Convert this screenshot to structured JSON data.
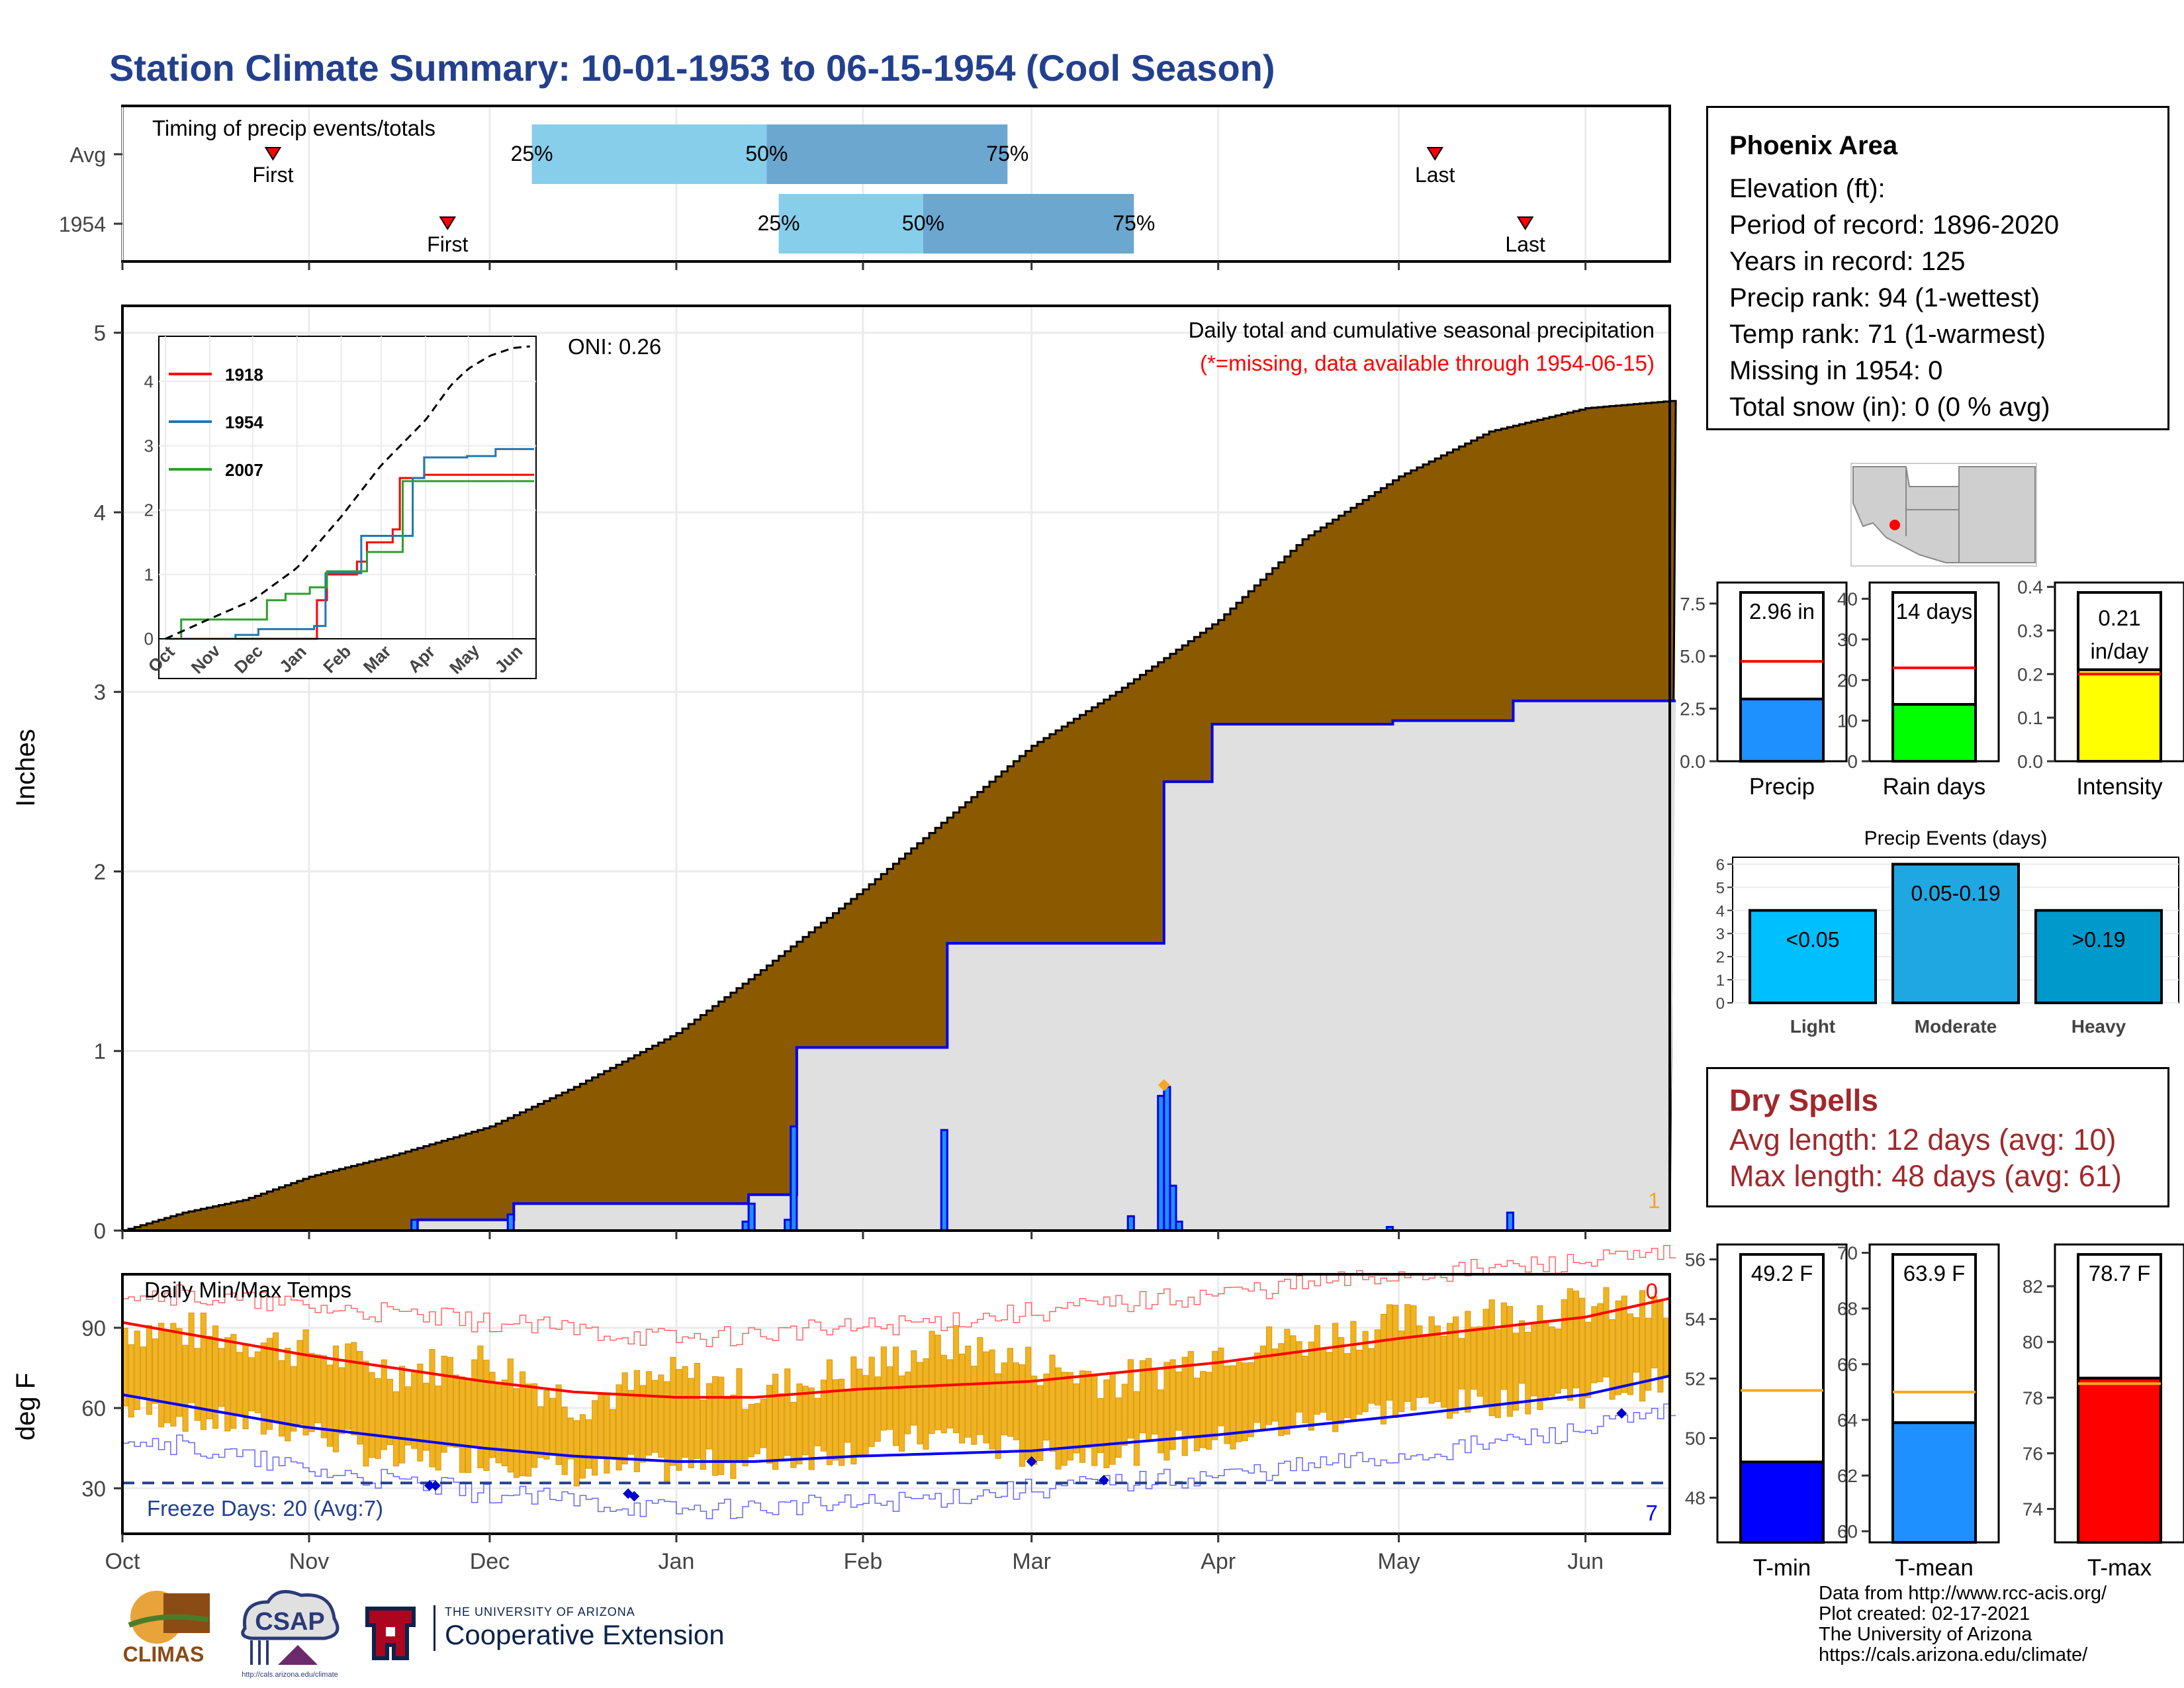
{
  "title": "Station Climate Summary: 10-01-1953 to 06-15-1954 (Cool Season)",
  "colors": {
    "title": "#23408e",
    "brown": "#8b5a00",
    "gray_fill": "#e0e0e0",
    "blue_line": "#0000ee",
    "orange": "#f5a623",
    "red": "#ff0000",
    "dry_spells": "#a0282c"
  },
  "timing": {
    "label": "Timing of precip events/totals",
    "rows": [
      {
        "name": "Avg",
        "first_doy": 25,
        "last_doy": 218,
        "p25": 68,
        "p50": 107,
        "p75": 147
      },
      {
        "name": "1954",
        "first_doy": 54,
        "last_doy": 233,
        "p25": 109,
        "p50": 133,
        "p75": 168
      }
    ],
    "labels": {
      "first": "First",
      "last": "Last",
      "p25": "25%",
      "p50": "50%",
      "p75": "75%"
    }
  },
  "info": {
    "station": "Phoenix Area",
    "lines": [
      "Elevation (ft):",
      "Period of record: 1896-2020",
      "Years in record: 125",
      "Precip rank: 94 (1-wettest)",
      "Temp rank: 71 (1-warmest)",
      "Missing in 1954: 0",
      "Total snow (in): 0 (0 % avg)"
    ]
  },
  "precip_main": {
    "ylabel": "Inches",
    "annotation": "Daily total and cumulative seasonal precipitation",
    "missing_note": "(*=missing, data available through 1954-06-15)",
    "oni": "ONI: 0.26",
    "corner_count": "1",
    "yticks": [
      "0",
      "1",
      "2",
      "3",
      "4",
      "5"
    ]
  },
  "temp_main": {
    "ylabel": "deg F",
    "label": "Daily Min/Max Temps",
    "freeze_label": "Freeze Days: 20 (Avg:7)",
    "count_top": "0",
    "count_bottom": "7",
    "yticks": [
      "30",
      "60",
      "90"
    ],
    "xticks": [
      "Oct",
      "Nov",
      "Dec",
      "Jan",
      "Feb",
      "Mar",
      "Apr",
      "May",
      "Jun"
    ]
  },
  "inset": {
    "legend": [
      "1918",
      "1954",
      "2007"
    ],
    "yticks": [
      "0",
      "1",
      "2",
      "3",
      "4"
    ],
    "xticks": [
      "Oct",
      "Nov",
      "Dec",
      "Jan",
      "Feb",
      "Mar",
      "Apr",
      "May",
      "Jun"
    ]
  },
  "small_bars": [
    {
      "name": "Precip",
      "value_label": "2.96 in",
      "value": 2.96,
      "avg": 4.75,
      "ymax": 8.5,
      "ticks": [
        "0.0",
        "2.5",
        "5.0",
        "7.5"
      ],
      "tick_vals": [
        0,
        2.5,
        5,
        7.5
      ],
      "color": "#1e90ff"
    },
    {
      "name": "Rain days",
      "value_label": "14 days",
      "value": 14,
      "avg": 23,
      "ymax": 44,
      "ticks": [
        "0",
        "10",
        "20",
        "30",
        "40"
      ],
      "tick_vals": [
        0,
        10,
        20,
        30,
        40
      ],
      "color": "#00ff00"
    },
    {
      "name": "Intensity",
      "value_label": "0.21",
      "value_label2": "in/day",
      "value": 0.21,
      "avg": 0.2,
      "ymax": 0.41,
      "ticks": [
        "0.0",
        "0.1",
        "0.2",
        "0.3",
        "0.4"
      ],
      "tick_vals": [
        0,
        0.1,
        0.2,
        0.3,
        0.4
      ],
      "color": "#ffff00"
    }
  ],
  "events": {
    "title": "Precip Events (days)",
    "bars": [
      {
        "name": "Light",
        "range": "<0.05",
        "value": 4,
        "color": "#00bfff"
      },
      {
        "name": "Moderate",
        "range": "0.05-0.19",
        "value": 6,
        "color": "#1ea7e0"
      },
      {
        "name": "Heavy",
        "range": ">0.19",
        "value": 4,
        "color": "#0099cc"
      }
    ],
    "ticks": [
      "0",
      "1",
      "2",
      "3",
      "4",
      "5",
      "6"
    ]
  },
  "dry_spells": {
    "title": "Dry Spells",
    "avg": "Avg length: 12 days (avg: 10)",
    "max": "Max length: 48 days (avg: 61)"
  },
  "temp_bars": [
    {
      "name": "T-min",
      "value_label": "49.2 F",
      "value": 49.2,
      "avg": 51.6,
      "ymin": 46.5,
      "ymax": 56.5,
      "ticks": [
        "48",
        "50",
        "52",
        "54",
        "56"
      ],
      "tick_vals": [
        48,
        50,
        52,
        54,
        56
      ],
      "color": "#0000ff"
    },
    {
      "name": "T-mean",
      "value_label": "63.9 F",
      "value": 63.9,
      "avg": 65.0,
      "ymin": 59.6,
      "ymax": 70.3,
      "ticks": [
        "60",
        "62",
        "64",
        "66",
        "68",
        "70"
      ],
      "tick_vals": [
        60,
        62,
        64,
        66,
        68,
        70
      ],
      "color": "#1e90ff"
    },
    {
      "name": "T-max",
      "value_label": "78.7 F",
      "value": 78.7,
      "avg": 78.5,
      "ymin": 72.8,
      "ymax": 83.5,
      "ticks": [
        "74",
        "76",
        "78",
        "80",
        "82"
      ],
      "tick_vals": [
        74,
        76,
        78,
        80,
        82
      ],
      "color": "#ff0000"
    }
  ],
  "credits": [
    "Data from http://www.rcc-acis.org/",
    "Plot created: 02-17-2021",
    "The University of Arizona",
    "https://cals.arizona.edu/climate/"
  ],
  "logos": {
    "climas": "CLIMAS",
    "csap": "CSAP",
    "csap_url": "http://cals.arizona.edu/climate",
    "ua_top": "THE UNIVERSITY OF ARIZONA",
    "ua_bottom": "Cooperative Extension"
  },
  "chart_data": [
    {
      "type": "area",
      "title": "Daily total and cumulative seasonal precipitation",
      "xlabel": "",
      "ylabel": "Inches",
      "ylim": [
        0,
        5.15
      ],
      "x_unit": "days since Oct 1",
      "series": [
        {
          "name": "Avg",
          "x": [
            0,
            10,
            20,
            31,
            45,
            61,
            75,
            92,
            106,
            123,
            137,
            151,
            165,
            182,
            196,
            212,
            227,
            243,
            257
          ],
          "values": [
            0,
            0.1,
            0.17,
            0.3,
            0.42,
            0.58,
            0.8,
            1.1,
            1.45,
            1.9,
            2.3,
            2.7,
            3.0,
            3.4,
            3.85,
            4.2,
            4.45,
            4.58,
            4.62
          ]
        },
        {
          "name": "1954",
          "x": [
            0,
            48,
            49,
            64,
            65,
            103,
            104,
            111,
            112,
            136,
            137,
            172,
            173,
            180,
            181,
            210,
            211,
            230,
            231,
            257
          ],
          "values": [
            0,
            0,
            0.06,
            0.06,
            0.15,
            0.15,
            0.2,
            0.2,
            1.02,
            1.02,
            1.6,
            1.6,
            2.5,
            2.5,
            2.82,
            2.82,
            2.84,
            2.84,
            2.95,
            2.95
          ]
        }
      ],
      "daily_bars": {
        "x": [
          48,
          64,
          103,
          104,
          110,
          111,
          136,
          167,
          172,
          173,
          174,
          175,
          210,
          230
        ],
        "values": [
          0.06,
          0.09,
          0.05,
          0.15,
          0.06,
          0.58,
          0.56,
          0.08,
          0.75,
          0.8,
          0.25,
          0.05,
          0.02,
          0.1
        ]
      }
    },
    {
      "type": "line",
      "title": "Daily Min/Max Temps",
      "ylabel": "deg F",
      "ylim": [
        13,
        110
      ],
      "x_unit": "days since Oct 1",
      "freeze_line": 32,
      "series": [
        {
          "name": "Avg max",
          "x": [
            0,
            30,
            60,
            75,
            92,
            105,
            122,
            151,
            182,
            212,
            243,
            257
          ],
          "values": [
            92,
            80,
            70,
            66,
            64,
            64,
            67,
            70,
            77,
            86,
            94,
            101
          ]
        },
        {
          "name": "Avg min",
          "x": [
            0,
            30,
            60,
            75,
            92,
            105,
            122,
            151,
            182,
            212,
            243,
            257
          ],
          "values": [
            65,
            53,
            45,
            42,
            40,
            40,
            42,
            44,
            50,
            57,
            65,
            72
          ]
        },
        {
          "name": "Record max",
          "x": [
            0,
            60,
            92,
            122,
            151,
            182,
            212,
            257
          ],
          "values": [
            104,
            92,
            86,
            90,
            96,
            103,
            110,
            117
          ]
        },
        {
          "name": "Record min",
          "x": [
            0,
            30,
            60,
            92,
            122,
            151,
            182,
            212,
            243,
            257
          ],
          "values": [
            50,
            37,
            28,
            22,
            24,
            30,
            35,
            42,
            52,
            58
          ]
        },
        {
          "name": "1954 max",
          "x": [
            0,
            15,
            30,
            45,
            60,
            75,
            92,
            105,
            122,
            137,
            151,
            166,
            182,
            197,
            212,
            227,
            243,
            257
          ],
          "values": [
            90,
            88,
            82,
            74,
            78,
            62,
            72,
            66,
            74,
            84,
            76,
            70,
            82,
            86,
            92,
            95,
            98,
            96
          ]
        },
        {
          "name": "1954 min",
          "x": [
            0,
            15,
            30,
            45,
            60,
            75,
            92,
            105,
            122,
            137,
            151,
            166,
            182,
            197,
            212,
            227,
            243,
            257
          ],
          "values": [
            60,
            55,
            52,
            40,
            42,
            36,
            38,
            40,
            45,
            50,
            42,
            44,
            48,
            55,
            60,
            62,
            66,
            70
          ]
        }
      ],
      "freeze_points": {
        "x": [
          51,
          52,
          84,
          85,
          151,
          163,
          249
        ],
        "values": [
          31,
          31,
          28,
          27,
          40,
          33,
          58
        ]
      }
    },
    {
      "type": "line",
      "title": "",
      "ylim": [
        0,
        4.6
      ],
      "x_unit": "days since Oct 1",
      "series": [
        {
          "name": "1918",
          "x": [
            0,
            105,
            106,
            112,
            113,
            133,
            134,
            140,
            141,
            158,
            159,
            163,
            164,
            180,
            181,
            257
          ],
          "values": [
            0,
            0,
            0.6,
            0.6,
            1.0,
            1.0,
            1.2,
            1.2,
            1.5,
            1.5,
            1.7,
            1.7,
            2.5,
            2.5,
            2.55,
            2.55
          ]
        },
        {
          "name": "1954",
          "x": [
            0,
            48,
            49,
            64,
            65,
            103,
            104,
            111,
            112,
            136,
            137,
            172,
            173,
            180,
            181,
            210,
            211,
            230,
            231,
            257
          ],
          "values": [
            0,
            0,
            0.06,
            0.06,
            0.15,
            0.15,
            0.2,
            0.2,
            1.02,
            1.02,
            1.6,
            1.6,
            2.5,
            2.5,
            2.82,
            2.82,
            2.84,
            2.84,
            2.95,
            2.95
          ]
        },
        {
          "name": "2007",
          "x": [
            0,
            10,
            11,
            70,
            71,
            83,
            84,
            100,
            101,
            112,
            113,
            140,
            141,
            165,
            166,
            257
          ],
          "values": [
            0,
            0,
            0.3,
            0.3,
            0.6,
            0.6,
            0.7,
            0.7,
            0.8,
            0.8,
            1.05,
            1.05,
            1.35,
            1.35,
            2.45,
            2.45
          ]
        },
        {
          "name": "Avg",
          "x": [
            0,
            30,
            61,
            92,
            123,
            151,
            182,
            200,
            212,
            227,
            243,
            257
          ],
          "values": [
            0,
            0.3,
            0.6,
            1.1,
            1.9,
            2.7,
            3.4,
            3.95,
            4.2,
            4.4,
            4.52,
            4.55
          ]
        }
      ]
    },
    {
      "type": "bar",
      "categories": [
        "Precip"
      ],
      "values": [
        2.96
      ],
      "avg": 4.75,
      "ylim": [
        0,
        8.5
      ]
    },
    {
      "type": "bar",
      "categories": [
        "Rain days"
      ],
      "values": [
        14
      ],
      "avg": 23,
      "ylim": [
        0,
        44
      ]
    },
    {
      "type": "bar",
      "categories": [
        "Intensity"
      ],
      "values": [
        0.21
      ],
      "avg": 0.2,
      "ylim": [
        0,
        0.41
      ]
    },
    {
      "type": "bar",
      "title": "Precip Events (days)",
      "categories": [
        "Light",
        "Moderate",
        "Heavy"
      ],
      "values": [
        4,
        6,
        4
      ],
      "ylim": [
        0,
        6.3
      ]
    },
    {
      "type": "bar",
      "categories": [
        "T-min"
      ],
      "values": [
        49.2
      ],
      "avg": 51.6,
      "ylim": [
        46.5,
        56.5
      ]
    },
    {
      "type": "bar",
      "categories": [
        "T-mean"
      ],
      "values": [
        63.9
      ],
      "avg": 65.0,
      "ylim": [
        59.6,
        70.3
      ]
    },
    {
      "type": "bar",
      "categories": [
        "T-max"
      ],
      "values": [
        78.7
      ],
      "avg": 78.5,
      "ylim": [
        72.8,
        83.5
      ]
    }
  ]
}
